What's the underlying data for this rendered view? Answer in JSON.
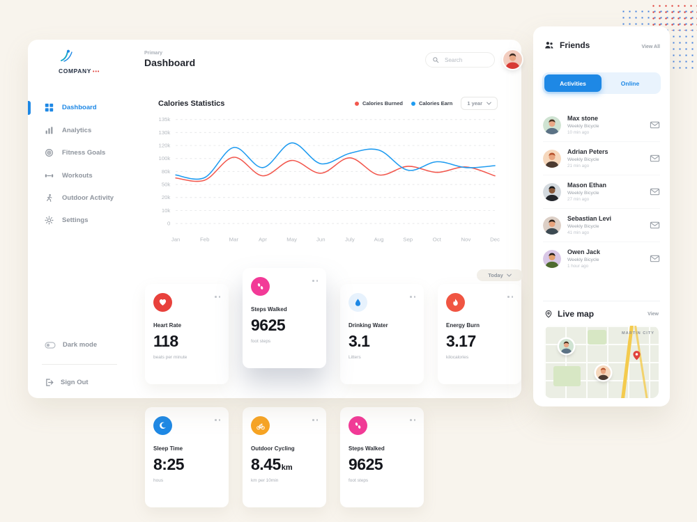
{
  "theme": {
    "accent_blue": "#1e88e5",
    "background": "#f8f4ed",
    "red": "#e8413c",
    "pink": "#f23a97",
    "orange": "#f7a424"
  },
  "sidebar": {
    "logo_text": "COMPANY",
    "items": [
      {
        "label": "Dashboard",
        "icon": "grid-icon",
        "active": true
      },
      {
        "label": "Analytics",
        "icon": "analytics-icon",
        "active": false
      },
      {
        "label": "Fitness Goals",
        "icon": "target-icon",
        "active": false
      },
      {
        "label": "Workouts",
        "icon": "dumbbell-icon",
        "active": false
      },
      {
        "label": "Outdoor Activity",
        "icon": "runner-icon",
        "active": false
      },
      {
        "label": "Settings",
        "icon": "gear-icon",
        "active": false
      }
    ],
    "dark_mode_label": "Dark mode",
    "sign_out_label": "Sign Out"
  },
  "header": {
    "eyebrow": "Primary",
    "title": "Dashboard",
    "search_placeholder": "Search"
  },
  "chart": {
    "title": "Calories Statistics",
    "legend": [
      {
        "label": "Calories Burned",
        "color": "#f2574d"
      },
      {
        "label": "Calories Earn",
        "color": "#1e9bf0"
      }
    ],
    "range_label": "1 year",
    "today_label": "Today"
  },
  "chart_data": {
    "type": "line",
    "title": "Calories Statistics",
    "categories": [
      "Jan",
      "Feb",
      "Mar",
      "Apr",
      "May",
      "Jun",
      "July",
      "Aug",
      "Sep",
      "Oct",
      "Nov",
      "Dec"
    ],
    "yticks": [
      "135k",
      "130k",
      "120k",
      "100k",
      "80k",
      "50k",
      "20k",
      "10k",
      "0"
    ],
    "ytick_values": [
      135000,
      130000,
      120000,
      100000,
      80000,
      50000,
      20000,
      10000,
      0
    ],
    "ylim": [
      0,
      135000
    ],
    "grid": true,
    "legend_position": "top-right",
    "series": [
      {
        "name": "Calories Burned",
        "color": "#f2574d",
        "values": [
          65000,
          60000,
          102000,
          70000,
          97000,
          76000,
          101000,
          72000,
          88000,
          78000,
          87000,
          70000
        ]
      },
      {
        "name": "Calories Earn",
        "color": "#1e9bf0",
        "values": [
          72000,
          66000,
          117000,
          86000,
          122000,
          92000,
          108000,
          113000,
          82000,
          95000,
          86000,
          89000
        ]
      }
    ]
  },
  "stats": [
    {
      "label": "Heart Rate",
      "value": "118",
      "suffix": "",
      "unit": "beats per minute",
      "icon": "heart-icon",
      "color": "#e8413c"
    },
    {
      "label": "Steps Walked",
      "value": "9625",
      "suffix": "",
      "unit": "foot steps",
      "icon": "steps-icon",
      "color": "#f23a97"
    },
    {
      "label": "Drinking Water",
      "value": "3.1",
      "suffix": "",
      "unit": "Litters",
      "icon": "water-drop-icon",
      "color": "#1e88e5"
    },
    {
      "label": "Energy Burn",
      "value": "3.17",
      "suffix": "",
      "unit": "kilocalories",
      "icon": "flame-icon",
      "color": "#f05542"
    },
    {
      "label": "Sleep Time",
      "value": "8:25",
      "suffix": "",
      "unit": "hous",
      "icon": "moon-icon",
      "color": "#1e88e5"
    },
    {
      "label": "Outdoor Cycling",
      "value": "8.45",
      "suffix": "km",
      "unit": "km per 10min",
      "icon": "bicycle-icon",
      "color": "#f7a424"
    },
    {
      "label": "Steps Walked",
      "value": "9625",
      "suffix": "",
      "unit": "foot steps",
      "icon": "steps-icon",
      "color": "#f23a97"
    }
  ],
  "friends": {
    "title": "Friends",
    "view_all": "View All",
    "tabs": [
      {
        "label": "Activities",
        "active": true
      },
      {
        "label": "Online",
        "active": false
      }
    ],
    "list": [
      {
        "name": "Max stone",
        "activity": "Weekly Bicycle",
        "time": "10 min ago"
      },
      {
        "name": "Adrian Peters",
        "activity": "Weekly Bicycle",
        "time": "21 min ago"
      },
      {
        "name": "Mason Ethan",
        "activity": "Weekly Bicycle",
        "time": "27 min ago"
      },
      {
        "name": "Sebastian Levi",
        "activity": "Weekly Bicycle",
        "time": "41 min ago"
      },
      {
        "name": "Owen Jack",
        "activity": "Weekly Bicycle",
        "time": "1 hour ago"
      }
    ]
  },
  "live_map": {
    "title": "Live map",
    "view_label": "View",
    "city_label": "MARTIN CITY"
  }
}
